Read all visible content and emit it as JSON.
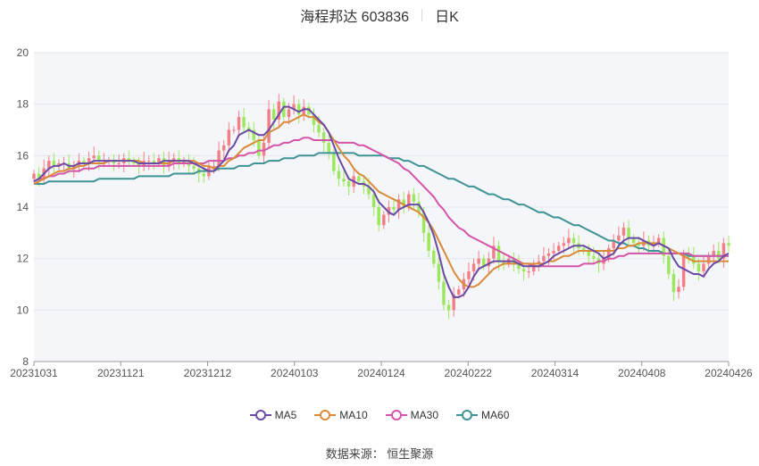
{
  "header": {
    "title": "海程邦达 603836",
    "period": "日K"
  },
  "source": "数据来源： 恒生聚源",
  "colors": {
    "up": "#f27f86",
    "down": "#9ce85c",
    "ma5": "#6a4aa5",
    "ma10": "#d98b3a",
    "ma30": "#d454a8",
    "ma60": "#3e9395",
    "plot_bg": "#f5f6fa",
    "grid": "#e3e6ef"
  },
  "chart_data": {
    "type": "candlestick",
    "ylim": [
      8,
      20
    ],
    "yticks": [
      8,
      10,
      12,
      14,
      16,
      18,
      20
    ],
    "xtick_labels": [
      "20231031",
      "20231121",
      "20231212",
      "20240103",
      "20240124",
      "20240222",
      "20240314",
      "20240408",
      "20240426"
    ],
    "grid": "horizontal",
    "legend_position": "bottom",
    "series_names": [
      "MA5",
      "MA10",
      "MA30",
      "MA60"
    ],
    "close": [
      15.3,
      15.1,
      15.5,
      15.8,
      15.6,
      15.7,
      15.7,
      15.5,
      15.6,
      15.8,
      15.7,
      15.9,
      16.0,
      15.8,
      15.8,
      15.8,
      15.7,
      15.7,
      15.9,
      15.8,
      15.7,
      15.6,
      15.8,
      15.8,
      15.7,
      15.9,
      15.6,
      15.8,
      15.9,
      15.7,
      15.8,
      15.6,
      15.5,
      15.3,
      15.2,
      15.6,
      15.6,
      16.2,
      16.4,
      17.0,
      17.0,
      17.5,
      17.1,
      17.0,
      16.6,
      16.0,
      16.5,
      17.8,
      17.4,
      18.1,
      17.5,
      17.8,
      18.0,
      17.6,
      17.9,
      17.6,
      17.2,
      16.9,
      16.5,
      16.1,
      15.4,
      15.1,
      15.0,
      14.8,
      15.2,
      15.0,
      14.8,
      14.5,
      14.0,
      13.3,
      13.7,
      14.0,
      13.9,
      14.3,
      14.0,
      14.5,
      14.2,
      13.8,
      13.0,
      12.3,
      11.8,
      11.1,
      10.2,
      10.0,
      10.6,
      10.8,
      11.2,
      11.5,
      11.8,
      12.0,
      11.7,
      12.0,
      12.5,
      11.9,
      11.8,
      12.0,
      11.8,
      11.6,
      11.5,
      11.5,
      11.8,
      11.9,
      12.1,
      12.2,
      12.3,
      12.5,
      12.6,
      12.8,
      12.6,
      12.4,
      12.3,
      12.1,
      12.0,
      11.8,
      12.0,
      12.4,
      12.7,
      12.9,
      13.2,
      12.8,
      12.6,
      12.5,
      12.7,
      12.5,
      12.6,
      12.8,
      12.1,
      11.4,
      10.7,
      10.9,
      12.2,
      12.1,
      11.8,
      11.5,
      11.8,
      12.1,
      12.3,
      12.0,
      12.6,
      12.5
    ],
    "ma5": [
      15.0,
      15.1,
      15.3,
      15.5,
      15.6,
      15.6,
      15.7,
      15.6,
      15.6,
      15.7,
      15.7,
      15.7,
      15.8,
      15.8,
      15.8,
      15.8,
      15.8,
      15.8,
      15.8,
      15.8,
      15.8,
      15.7,
      15.7,
      15.7,
      15.7,
      15.7,
      15.8,
      15.8,
      15.8,
      15.8,
      15.8,
      15.8,
      15.7,
      15.6,
      15.5,
      15.4,
      15.4,
      15.6,
      15.8,
      16.2,
      16.4,
      16.8,
      16.9,
      17.0,
      16.9,
      16.8,
      16.8,
      17.0,
      17.3,
      17.6,
      17.9,
      17.9,
      17.8,
      17.7,
      17.8,
      17.8,
      17.6,
      17.4,
      17.2,
      16.9,
      16.4,
      15.9,
      15.5,
      15.1,
      15.0,
      14.9,
      14.9,
      14.8,
      14.6,
      14.2,
      14.0,
      13.8,
      13.7,
      13.9,
      14.0,
      14.1,
      14.1,
      14.1,
      13.8,
      13.4,
      12.9,
      12.2,
      11.4,
      10.9,
      10.5,
      10.5,
      10.6,
      10.9,
      11.3,
      11.6,
      11.7,
      11.8,
      11.9,
      11.9,
      11.9,
      11.9,
      11.9,
      11.8,
      11.7,
      11.7,
      11.7,
      11.7,
      11.8,
      11.9,
      12.1,
      12.2,
      12.3,
      12.4,
      12.5,
      12.5,
      12.5,
      12.4,
      12.3,
      12.2,
      12.0,
      12.1,
      12.2,
      12.5,
      12.7,
      12.8,
      12.8,
      12.8,
      12.7,
      12.6,
      12.5,
      12.6,
      12.5,
      12.4,
      12.0,
      11.7,
      11.6,
      11.5,
      11.4,
      11.4,
      11.3,
      11.6,
      11.8,
      11.9,
      12.1,
      12.2
    ],
    "ma10": [
      14.9,
      15.0,
      15.1,
      15.2,
      15.3,
      15.4,
      15.4,
      15.5,
      15.5,
      15.6,
      15.6,
      15.7,
      15.7,
      15.7,
      15.7,
      15.8,
      15.8,
      15.8,
      15.8,
      15.8,
      15.8,
      15.8,
      15.7,
      15.7,
      15.7,
      15.7,
      15.7,
      15.7,
      15.8,
      15.8,
      15.8,
      15.8,
      15.8,
      15.7,
      15.6,
      15.6,
      15.5,
      15.6,
      15.6,
      15.8,
      15.9,
      16.1,
      16.3,
      16.4,
      16.5,
      16.6,
      16.6,
      16.9,
      17.0,
      17.1,
      17.3,
      17.3,
      17.4,
      17.5,
      17.6,
      17.5,
      17.5,
      17.3,
      17.2,
      16.9,
      16.6,
      16.3,
      16.0,
      15.8,
      15.5,
      15.3,
      15.2,
      15.0,
      14.8,
      14.6,
      14.5,
      14.4,
      14.3,
      14.2,
      14.1,
      14.0,
      13.9,
      13.8,
      13.6,
      13.4,
      13.1,
      12.7,
      12.3,
      11.9,
      11.5,
      11.2,
      11.0,
      10.9,
      10.9,
      11.0,
      11.2,
      11.4,
      11.6,
      11.7,
      11.8,
      11.8,
      11.8,
      11.8,
      11.8,
      11.8,
      11.8,
      11.8,
      11.8,
      11.9,
      11.9,
      12.0,
      12.1,
      12.1,
      12.2,
      12.3,
      12.3,
      12.3,
      12.3,
      12.3,
      12.3,
      12.3,
      12.3,
      12.4,
      12.4,
      12.5,
      12.5,
      12.6,
      12.6,
      12.6,
      12.6,
      12.6,
      12.5,
      12.4,
      12.3,
      12.2,
      12.1,
      12.0,
      11.9,
      11.9,
      11.9,
      11.9,
      11.9,
      11.9,
      11.9,
      11.9
    ],
    "ma30": [
      15.0,
      15.1,
      15.1,
      15.2,
      15.2,
      15.3,
      15.3,
      15.4,
      15.4,
      15.4,
      15.5,
      15.5,
      15.5,
      15.6,
      15.6,
      15.6,
      15.6,
      15.6,
      15.6,
      15.6,
      15.6,
      15.6,
      15.6,
      15.6,
      15.6,
      15.6,
      15.6,
      15.6,
      15.7,
      15.7,
      15.7,
      15.7,
      15.7,
      15.7,
      15.7,
      15.8,
      15.8,
      15.8,
      15.8,
      15.9,
      15.9,
      16.0,
      16.0,
      16.1,
      16.1,
      16.2,
      16.2,
      16.3,
      16.4,
      16.4,
      16.5,
      16.5,
      16.6,
      16.6,
      16.7,
      16.7,
      16.6,
      16.6,
      16.6,
      16.6,
      16.6,
      16.5,
      16.5,
      16.5,
      16.5,
      16.4,
      16.4,
      16.3,
      16.2,
      16.1,
      16.0,
      15.9,
      15.8,
      15.7,
      15.5,
      15.4,
      15.2,
      15.0,
      14.8,
      14.6,
      14.4,
      14.1,
      13.9,
      13.6,
      13.4,
      13.2,
      13.1,
      12.9,
      12.8,
      12.7,
      12.6,
      12.5,
      12.4,
      12.3,
      12.2,
      12.1,
      12.0,
      11.9,
      11.8,
      11.8,
      11.7,
      11.7,
      11.7,
      11.7,
      11.7,
      11.7,
      11.7,
      11.7,
      11.7,
      11.7,
      11.8,
      11.8,
      11.8,
      11.9,
      11.9,
      12.0,
      12.0,
      12.1,
      12.1,
      12.2,
      12.2,
      12.2,
      12.2,
      12.2,
      12.2,
      12.2,
      12.2,
      12.2,
      12.2,
      12.2,
      12.2,
      12.2,
      12.1,
      12.1,
      12.1,
      12.1,
      12.1,
      12.1,
      12.1,
      12.1
    ],
    "ma60": [
      14.9,
      14.9,
      14.9,
      15.0,
      15.0,
      15.0,
      15.0,
      15.0,
      15.0,
      15.0,
      15.0,
      15.0,
      15.0,
      15.1,
      15.1,
      15.1,
      15.1,
      15.1,
      15.1,
      15.1,
      15.1,
      15.2,
      15.2,
      15.2,
      15.2,
      15.2,
      15.2,
      15.2,
      15.3,
      15.3,
      15.3,
      15.3,
      15.3,
      15.4,
      15.4,
      15.4,
      15.4,
      15.5,
      15.5,
      15.5,
      15.5,
      15.6,
      15.6,
      15.6,
      15.7,
      15.7,
      15.7,
      15.8,
      15.8,
      15.8,
      15.9,
      15.9,
      15.9,
      16.0,
      16.0,
      16.0,
      16.0,
      16.1,
      16.1,
      16.1,
      16.1,
      16.1,
      16.1,
      16.1,
      16.1,
      16.0,
      16.0,
      16.0,
      16.0,
      16.0,
      16.0,
      15.9,
      15.9,
      15.9,
      15.8,
      15.8,
      15.7,
      15.6,
      15.6,
      15.5,
      15.4,
      15.3,
      15.2,
      15.1,
      15.1,
      15.0,
      14.9,
      14.8,
      14.8,
      14.7,
      14.6,
      14.5,
      14.5,
      14.4,
      14.3,
      14.3,
      14.2,
      14.1,
      14.1,
      14.0,
      13.9,
      13.8,
      13.8,
      13.7,
      13.6,
      13.6,
      13.5,
      13.4,
      13.3,
      13.3,
      13.2,
      13.1,
      13.0,
      12.9,
      12.8,
      12.7,
      12.7,
      12.6,
      12.6,
      12.5,
      12.5,
      12.4,
      12.4,
      12.3,
      12.3,
      12.3,
      12.2,
      12.2,
      12.2,
      12.2,
      12.2,
      12.1,
      12.1,
      12.1,
      12.1,
      12.1,
      12.1,
      12.1,
      12.1,
      12.1
    ]
  }
}
